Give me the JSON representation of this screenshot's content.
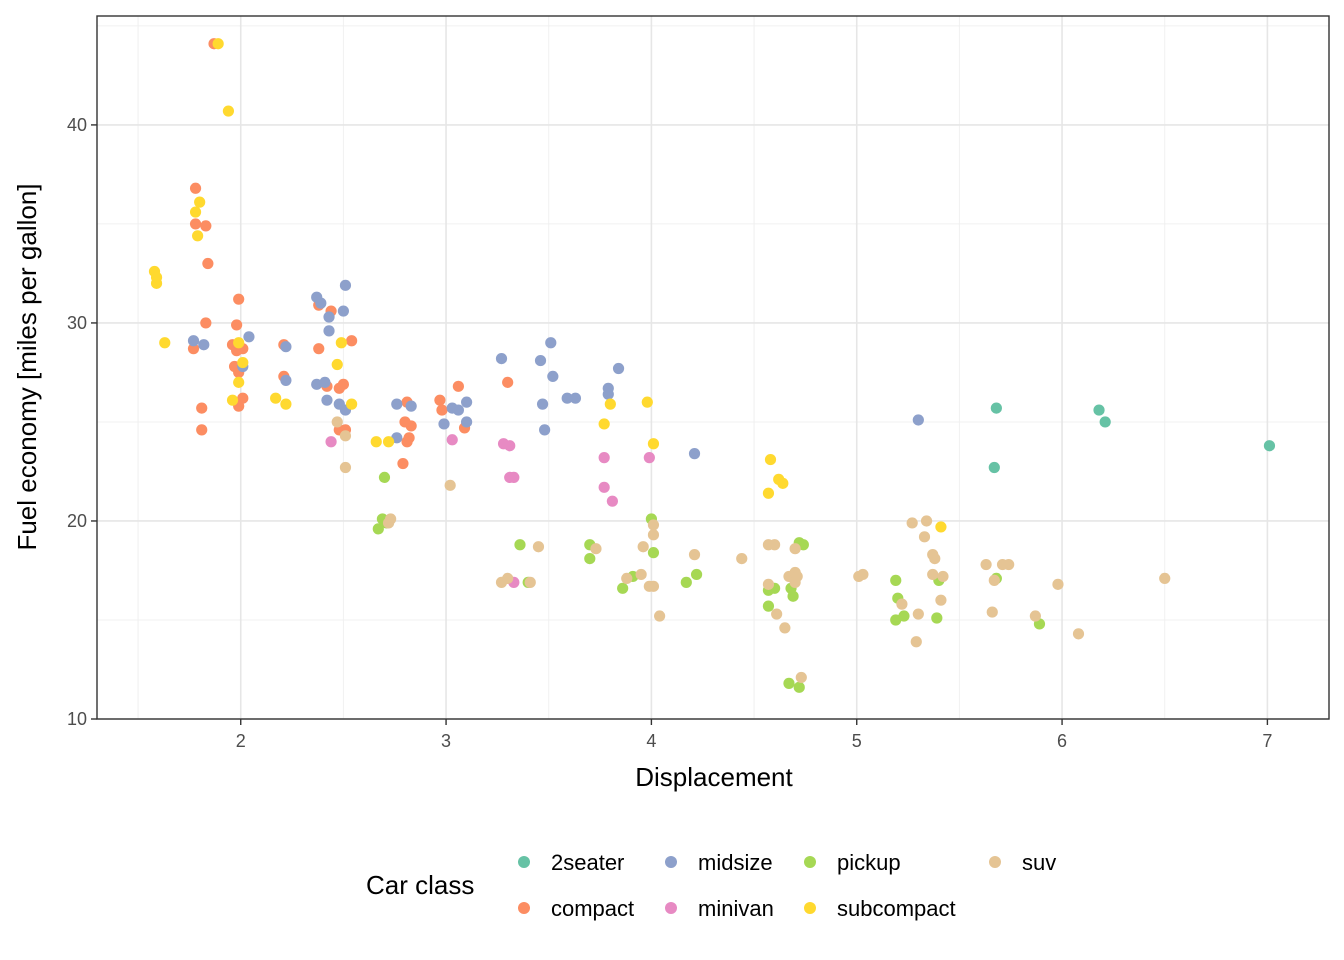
{
  "chart_data": {
    "type": "scatter",
    "title": "",
    "xlabel": "Displacement",
    "ylabel": "Fuel economy [miles per gallon]",
    "xlim": [
      1.3,
      7.3
    ],
    "ylim": [
      10,
      45.5
    ],
    "x_ticks": [
      2,
      3,
      4,
      5,
      6,
      7
    ],
    "y_ticks": [
      10,
      20,
      30,
      40
    ],
    "grid": true,
    "legend": {
      "title": "Car class",
      "position": "bottom",
      "entries": [
        {
          "name": "2seater",
          "color": "#66c2a5"
        },
        {
          "name": "compact",
          "color": "#fc8d62"
        },
        {
          "name": "midsize",
          "color": "#8da0cb"
        },
        {
          "name": "minivan",
          "color": "#e78ac3"
        },
        {
          "name": "pickup",
          "color": "#a6d854"
        },
        {
          "name": "subcompact",
          "color": "#ffd92f"
        },
        {
          "name": "suv",
          "color": "#e5c494"
        }
      ]
    },
    "series": [
      {
        "name": "2seater",
        "color": "#66c2a5",
        "points": [
          [
            5.68,
            25.7
          ],
          [
            5.67,
            22.7
          ],
          [
            6.18,
            25.6
          ],
          [
            6.21,
            25.0
          ],
          [
            7.01,
            23.8
          ]
        ]
      },
      {
        "name": "compact",
        "color": "#fc8d62",
        "points": [
          [
            1.87,
            44.1
          ],
          [
            1.78,
            36.8
          ],
          [
            1.78,
            35.0
          ],
          [
            1.83,
            34.9
          ],
          [
            1.84,
            33.0
          ],
          [
            1.99,
            31.2
          ],
          [
            1.83,
            30.0
          ],
          [
            1.98,
            29.9
          ],
          [
            1.77,
            28.7
          ],
          [
            1.96,
            28.9
          ],
          [
            2.01,
            28.7
          ],
          [
            1.98,
            28.6
          ],
          [
            1.97,
            27.8
          ],
          [
            1.99,
            27.5
          ],
          [
            1.81,
            25.7
          ],
          [
            2.01,
            26.2
          ],
          [
            1.99,
            25.8
          ],
          [
            1.81,
            24.6
          ],
          [
            2.21,
            28.9
          ],
          [
            2.21,
            27.3
          ],
          [
            2.38,
            30.9
          ],
          [
            2.44,
            30.6
          ],
          [
            2.38,
            28.7
          ],
          [
            2.42,
            26.8
          ],
          [
            2.48,
            26.7
          ],
          [
            2.5,
            26.9
          ],
          [
            2.48,
            24.6
          ],
          [
            2.51,
            24.6
          ],
          [
            2.54,
            29.1
          ],
          [
            2.81,
            26.0
          ],
          [
            2.83,
            24.8
          ],
          [
            2.8,
            25.0
          ],
          [
            2.82,
            24.2
          ],
          [
            2.81,
            24.0
          ],
          [
            2.79,
            22.9
          ],
          [
            2.97,
            26.1
          ],
          [
            2.98,
            25.6
          ],
          [
            3.06,
            26.8
          ],
          [
            3.09,
            24.7
          ],
          [
            3.3,
            27.0
          ]
        ]
      },
      {
        "name": "midsize",
        "color": "#8da0cb",
        "points": [
          [
            1.77,
            29.1
          ],
          [
            1.82,
            28.9
          ],
          [
            2.04,
            29.3
          ],
          [
            2.01,
            27.8
          ],
          [
            2.22,
            28.8
          ],
          [
            2.22,
            27.1
          ],
          [
            2.37,
            31.3
          ],
          [
            2.39,
            31.0
          ],
          [
            2.43,
            30.3
          ],
          [
            2.43,
            29.6
          ],
          [
            2.5,
            30.6
          ],
          [
            2.51,
            31.9
          ],
          [
            2.37,
            26.9
          ],
          [
            2.41,
            27.0
          ],
          [
            2.42,
            26.1
          ],
          [
            2.48,
            25.9
          ],
          [
            2.51,
            25.6
          ],
          [
            2.76,
            25.9
          ],
          [
            2.83,
            25.8
          ],
          [
            2.76,
            24.2
          ],
          [
            2.99,
            24.9
          ],
          [
            3.03,
            25.7
          ],
          [
            3.06,
            25.6
          ],
          [
            3.1,
            26.0
          ],
          [
            3.1,
            25.0
          ],
          [
            3.27,
            28.2
          ],
          [
            3.46,
            28.1
          ],
          [
            3.51,
            29.0
          ],
          [
            3.52,
            27.3
          ],
          [
            3.47,
            25.9
          ],
          [
            3.48,
            24.6
          ],
          [
            3.59,
            26.2
          ],
          [
            3.63,
            26.2
          ],
          [
            3.79,
            26.7
          ],
          [
            3.79,
            26.4
          ],
          [
            3.84,
            27.7
          ],
          [
            4.21,
            23.4
          ],
          [
            5.3,
            25.1
          ]
        ]
      },
      {
        "name": "minivan",
        "color": "#e78ac3",
        "points": [
          [
            2.44,
            24.0
          ],
          [
            3.03,
            24.1
          ],
          [
            3.28,
            23.9
          ],
          [
            3.31,
            23.8
          ],
          [
            3.31,
            22.2
          ],
          [
            3.33,
            22.2
          ],
          [
            3.33,
            16.9
          ],
          [
            3.77,
            23.2
          ],
          [
            3.77,
            21.7
          ],
          [
            3.81,
            21.0
          ],
          [
            3.99,
            23.2
          ]
        ]
      },
      {
        "name": "pickup",
        "color": "#a6d854",
        "points": [
          [
            2.7,
            22.2
          ],
          [
            2.69,
            20.1
          ],
          [
            2.67,
            19.6
          ],
          [
            2.71,
            19.9
          ],
          [
            3.36,
            18.8
          ],
          [
            3.4,
            16.9
          ],
          [
            3.7,
            18.8
          ],
          [
            3.7,
            18.1
          ],
          [
            3.91,
            17.2
          ],
          [
            3.86,
            16.6
          ],
          [
            4.0,
            20.1
          ],
          [
            4.01,
            18.4
          ],
          [
            4.17,
            16.9
          ],
          [
            4.22,
            17.3
          ],
          [
            4.57,
            16.5
          ],
          [
            4.6,
            16.6
          ],
          [
            4.57,
            15.7
          ],
          [
            4.68,
            16.6
          ],
          [
            4.69,
            16.2
          ],
          [
            4.72,
            18.9
          ],
          [
            4.74,
            18.8
          ],
          [
            4.67,
            11.8
          ],
          [
            4.72,
            11.6
          ],
          [
            5.19,
            17.0
          ],
          [
            5.2,
            16.1
          ],
          [
            5.19,
            15.0
          ],
          [
            5.23,
            15.2
          ],
          [
            5.39,
            15.1
          ],
          [
            5.4,
            17.0
          ],
          [
            5.68,
            17.1
          ],
          [
            5.89,
            14.8
          ]
        ]
      },
      {
        "name": "subcompact",
        "color": "#ffd92f",
        "points": [
          [
            1.89,
            44.1
          ],
          [
            1.94,
            40.7
          ],
          [
            1.78,
            35.6
          ],
          [
            1.8,
            36.1
          ],
          [
            1.79,
            34.4
          ],
          [
            1.58,
            32.6
          ],
          [
            1.59,
            32.0
          ],
          [
            1.59,
            32.3
          ],
          [
            1.63,
            29.0
          ],
          [
            1.99,
            29.0
          ],
          [
            1.96,
            26.1
          ],
          [
            1.99,
            27.0
          ],
          [
            2.01,
            28.0
          ],
          [
            2.17,
            26.2
          ],
          [
            2.22,
            25.9
          ],
          [
            2.47,
            27.9
          ],
          [
            2.49,
            29.0
          ],
          [
            2.54,
            25.9
          ],
          [
            2.66,
            24.0
          ],
          [
            2.72,
            24.0
          ],
          [
            3.77,
            24.9
          ],
          [
            3.8,
            25.9
          ],
          [
            3.98,
            26.0
          ],
          [
            4.01,
            23.9
          ],
          [
            4.58,
            23.1
          ],
          [
            4.57,
            21.4
          ],
          [
            4.62,
            22.1
          ],
          [
            4.64,
            21.9
          ],
          [
            5.41,
            19.7
          ]
        ]
      },
      {
        "name": "suv",
        "color": "#e5c494",
        "points": [
          [
            2.47,
            25.0
          ],
          [
            2.51,
            24.3
          ],
          [
            2.51,
            22.7
          ],
          [
            2.72,
            19.9
          ],
          [
            2.73,
            20.1
          ],
          [
            3.02,
            21.8
          ],
          [
            3.27,
            16.9
          ],
          [
            3.3,
            17.1
          ],
          [
            3.41,
            16.9
          ],
          [
            3.45,
            18.7
          ],
          [
            3.73,
            18.6
          ],
          [
            3.88,
            17.1
          ],
          [
            3.95,
            17.3
          ],
          [
            3.96,
            18.7
          ],
          [
            3.99,
            16.7
          ],
          [
            4.01,
            16.7
          ],
          [
            4.01,
            19.8
          ],
          [
            4.01,
            19.3
          ],
          [
            4.04,
            15.2
          ],
          [
            4.21,
            18.3
          ],
          [
            4.44,
            18.1
          ],
          [
            4.57,
            18.8
          ],
          [
            4.6,
            18.8
          ],
          [
            4.57,
            16.8
          ],
          [
            4.61,
            15.3
          ],
          [
            4.65,
            14.6
          ],
          [
            4.67,
            17.2
          ],
          [
            4.7,
            17.4
          ],
          [
            4.71,
            17.2
          ],
          [
            4.7,
            16.9
          ],
          [
            4.7,
            18.6
          ],
          [
            4.73,
            12.1
          ],
          [
            5.01,
            17.2
          ],
          [
            5.03,
            17.3
          ],
          [
            5.22,
            15.8
          ],
          [
            5.27,
            19.9
          ],
          [
            5.29,
            13.9
          ],
          [
            5.3,
            15.3
          ],
          [
            5.34,
            20.0
          ],
          [
            5.33,
            19.2
          ],
          [
            5.37,
            18.3
          ],
          [
            5.38,
            18.1
          ],
          [
            5.37,
            17.3
          ],
          [
            5.41,
            16.0
          ],
          [
            5.42,
            17.2
          ],
          [
            5.63,
            17.8
          ],
          [
            5.66,
            15.4
          ],
          [
            5.67,
            17.0
          ],
          [
            5.71,
            17.8
          ],
          [
            5.74,
            17.8
          ],
          [
            5.87,
            15.2
          ],
          [
            5.98,
            16.8
          ],
          [
            6.08,
            14.3
          ],
          [
            6.5,
            17.1
          ]
        ]
      }
    ]
  }
}
